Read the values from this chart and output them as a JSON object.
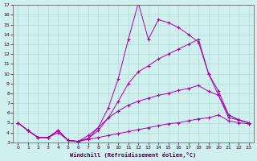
{
  "xlabel": "Windchill (Refroidissement éolien,°C)",
  "xlim": [
    -0.5,
    23.5
  ],
  "ylim": [
    3,
    17
  ],
  "xticks": [
    0,
    1,
    2,
    3,
    4,
    5,
    6,
    7,
    8,
    9,
    10,
    11,
    12,
    13,
    14,
    15,
    16,
    17,
    18,
    19,
    20,
    21,
    22,
    23
  ],
  "yticks": [
    3,
    4,
    5,
    6,
    7,
    8,
    9,
    10,
    11,
    12,
    13,
    14,
    15,
    16,
    17
  ],
  "background_color": "#cff0ee",
  "grid_color": "#b0d8d4",
  "line_color": "#aa00aa",
  "line1_x": [
    0,
    1,
    2,
    3,
    4,
    5,
    6,
    7,
    8,
    9,
    10,
    11,
    12,
    13,
    14,
    15,
    16,
    17,
    18,
    19,
    20,
    21,
    22,
    23
  ],
  "line1_y": [
    5.0,
    4.2,
    3.5,
    3.5,
    4.2,
    3.2,
    3.1,
    3.4,
    4.5,
    6.5,
    9.5,
    13.5,
    17.2,
    13.5,
    15.5,
    15.2,
    14.7,
    14.0,
    13.2,
    10.0,
    7.8,
    5.5,
    5.3,
    5.0
  ],
  "line2_x": [
    0,
    1,
    2,
    3,
    4,
    5,
    6,
    7,
    8,
    9,
    10,
    11,
    12,
    13,
    14,
    15,
    16,
    17,
    18,
    19,
    20,
    21,
    22,
    23
  ],
  "line2_y": [
    5.0,
    4.2,
    3.5,
    3.5,
    4.2,
    3.2,
    3.1,
    3.4,
    4.2,
    5.5,
    7.2,
    9.0,
    10.2,
    10.8,
    11.5,
    12.0,
    12.5,
    13.0,
    13.5,
    10.0,
    8.2,
    5.8,
    5.3,
    5.0
  ],
  "line3_x": [
    0,
    1,
    2,
    3,
    4,
    5,
    6,
    7,
    8,
    9,
    10,
    11,
    12,
    13,
    14,
    15,
    16,
    17,
    18,
    19,
    20,
    21,
    22,
    23
  ],
  "line3_y": [
    5.0,
    4.2,
    3.5,
    3.5,
    4.2,
    3.2,
    3.1,
    3.7,
    4.5,
    5.5,
    6.2,
    6.8,
    7.2,
    7.5,
    7.8,
    8.0,
    8.3,
    8.5,
    8.8,
    8.2,
    7.8,
    5.8,
    5.3,
    5.0
  ],
  "line4_x": [
    0,
    1,
    2,
    3,
    4,
    5,
    6,
    7,
    8,
    9,
    10,
    11,
    12,
    13,
    14,
    15,
    16,
    17,
    18,
    19,
    20,
    21,
    22,
    23
  ],
  "line4_y": [
    5.0,
    4.2,
    3.5,
    3.5,
    4.0,
    3.2,
    3.1,
    3.3,
    3.5,
    3.7,
    3.9,
    4.1,
    4.3,
    4.5,
    4.7,
    4.9,
    5.0,
    5.2,
    5.4,
    5.5,
    5.8,
    5.2,
    5.0,
    4.9
  ]
}
